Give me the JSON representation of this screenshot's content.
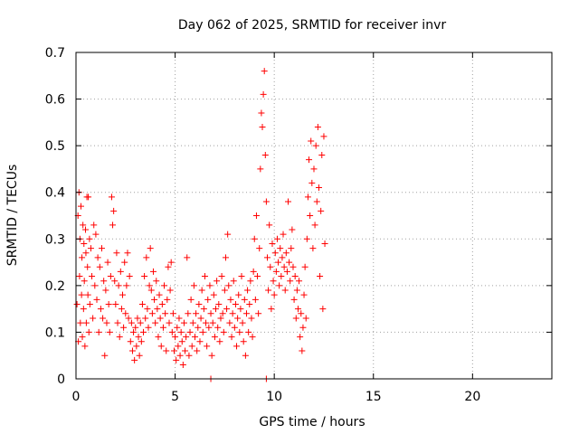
{
  "chart_data": {
    "type": "scatter",
    "title": "Day 062 of 2025, SRMTID for receiver invr",
    "xlabel": "GPS time / hours",
    "ylabel": "SRMTID / TECUs",
    "xlim": [
      0,
      24
    ],
    "ylim": [
      0,
      0.7
    ],
    "xticks": [
      0,
      5,
      10,
      15,
      20
    ],
    "yticks": [
      0,
      0.1,
      0.2,
      0.3,
      0.4,
      0.5,
      0.6,
      0.7
    ],
    "xtick_labels": [
      "0",
      "5",
      "10",
      "15",
      "20"
    ],
    "ytick_labels": [
      "0",
      "0.1",
      "0.2",
      "0.3",
      "0.4",
      "0.5",
      "0.6",
      "0.7"
    ],
    "grid": true,
    "marker": "+",
    "color": "#ff0000",
    "series": [
      {
        "name": "SRMTID",
        "points": [
          [
            0.05,
            0.16
          ],
          [
            0.1,
            0.35
          ],
          [
            0.12,
            0.08
          ],
          [
            0.15,
            0.4
          ],
          [
            0.18,
            0.22
          ],
          [
            0.2,
            0.3
          ],
          [
            0.22,
            0.12
          ],
          [
            0.25,
            0.37
          ],
          [
            0.28,
            0.18
          ],
          [
            0.3,
            0.26
          ],
          [
            0.32,
            0.09
          ],
          [
            0.35,
            0.33
          ],
          [
            0.38,
            0.15
          ],
          [
            0.4,
            0.29
          ],
          [
            0.42,
            0.21
          ],
          [
            0.45,
            0.07
          ],
          [
            0.48,
            0.32
          ],
          [
            0.5,
            0.27
          ],
          [
            0.52,
            0.12
          ],
          [
            0.55,
            0.39
          ],
          [
            0.58,
            0.24
          ],
          [
            0.6,
            0.18
          ],
          [
            0.62,
            0.39
          ],
          [
            0.65,
            0.1
          ],
          [
            0.68,
            0.3
          ],
          [
            0.7,
            0.16
          ],
          [
            0.75,
            0.28
          ],
          [
            0.8,
            0.22
          ],
          [
            0.85,
            0.13
          ],
          [
            0.9,
            0.33
          ],
          [
            0.95,
            0.2
          ],
          [
            1.0,
            0.31
          ],
          [
            1.05,
            0.17
          ],
          [
            1.1,
            0.26
          ],
          [
            1.15,
            0.1
          ],
          [
            1.2,
            0.24
          ],
          [
            1.25,
            0.15
          ],
          [
            1.3,
            0.28
          ],
          [
            1.35,
            0.13
          ],
          [
            1.4,
            0.21
          ],
          [
            1.45,
            0.05
          ],
          [
            1.5,
            0.19
          ],
          [
            1.55,
            0.12
          ],
          [
            1.6,
            0.25
          ],
          [
            1.65,
            0.16
          ],
          [
            1.7,
            0.1
          ],
          [
            1.75,
            0.22
          ],
          [
            1.8,
            0.39
          ],
          [
            1.85,
            0.33
          ],
          [
            1.9,
            0.36
          ],
          [
            1.95,
            0.21
          ],
          [
            2.0,
            0.16
          ],
          [
            2.05,
            0.27
          ],
          [
            2.1,
            0.12
          ],
          [
            2.15,
            0.2
          ],
          [
            2.2,
            0.09
          ],
          [
            2.25,
            0.23
          ],
          [
            2.3,
            0.15
          ],
          [
            2.35,
            0.18
          ],
          [
            2.4,
            0.11
          ],
          [
            2.45,
            0.25
          ],
          [
            2.5,
            0.14
          ],
          [
            2.55,
            0.2
          ],
          [
            2.6,
            0.27
          ],
          [
            2.65,
            0.13
          ],
          [
            2.7,
            0.22
          ],
          [
            2.75,
            0.08
          ],
          [
            2.8,
            0.12
          ],
          [
            2.85,
            0.06
          ],
          [
            2.9,
            0.1
          ],
          [
            2.95,
            0.04
          ],
          [
            3.0,
            0.11
          ],
          [
            3.05,
            0.07
          ],
          [
            3.1,
            0.13
          ],
          [
            3.15,
            0.09
          ],
          [
            3.2,
            0.05
          ],
          [
            3.25,
            0.12
          ],
          [
            3.3,
            0.08
          ],
          [
            3.35,
            0.16
          ],
          [
            3.4,
            0.1
          ],
          [
            3.45,
            0.22
          ],
          [
            3.5,
            0.13
          ],
          [
            3.55,
            0.26
          ],
          [
            3.6,
            0.15
          ],
          [
            3.65,
            0.11
          ],
          [
            3.7,
            0.2
          ],
          [
            3.75,
            0.28
          ],
          [
            3.8,
            0.19
          ],
          [
            3.85,
            0.14
          ],
          [
            3.9,
            0.23
          ],
          [
            3.95,
            0.17
          ],
          [
            4.0,
            0.12
          ],
          [
            4.05,
            0.21
          ],
          [
            4.1,
            0.15
          ],
          [
            4.15,
            0.09
          ],
          [
            4.2,
            0.18
          ],
          [
            4.25,
            0.13
          ],
          [
            4.3,
            0.07
          ],
          [
            4.35,
            0.16
          ],
          [
            4.4,
            0.11
          ],
          [
            4.45,
            0.2
          ],
          [
            4.5,
            0.14
          ],
          [
            4.55,
            0.06
          ],
          [
            4.6,
            0.17
          ],
          [
            4.65,
            0.24
          ],
          [
            4.7,
            0.12
          ],
          [
            4.75,
            0.19
          ],
          [
            4.8,
            0.25
          ],
          [
            4.85,
            0.1
          ],
          [
            4.9,
            0.14
          ],
          [
            4.95,
            0.06
          ],
          [
            5.0,
            0.09
          ],
          [
            5.05,
            0.04
          ],
          [
            5.1,
            0.11
          ],
          [
            5.15,
            0.07
          ],
          [
            5.2,
            0.13
          ],
          [
            5.25,
            0.05
          ],
          [
            5.3,
            0.1
          ],
          [
            5.35,
            0.08
          ],
          [
            5.4,
            0.03
          ],
          [
            5.45,
            0.12
          ],
          [
            5.5,
            0.06
          ],
          [
            5.55,
            0.09
          ],
          [
            5.6,
            0.26
          ],
          [
            5.65,
            0.14
          ],
          [
            5.7,
            0.05
          ],
          [
            5.75,
            0.1
          ],
          [
            5.8,
            0.17
          ],
          [
            5.85,
            0.07
          ],
          [
            5.9,
            0.12
          ],
          [
            5.95,
            0.2
          ],
          [
            6.0,
            0.09
          ],
          [
            6.05,
            0.14
          ],
          [
            6.1,
            0.06
          ],
          [
            6.15,
            0.11
          ],
          [
            6.2,
            0.16
          ],
          [
            6.25,
            0.08
          ],
          [
            6.3,
            0.13
          ],
          [
            6.35,
            0.19
          ],
          [
            6.4,
            0.1
          ],
          [
            6.45,
            0.15
          ],
          [
            6.5,
            0.22
          ],
          [
            6.55,
            0.12
          ],
          [
            6.6,
            0.07
          ],
          [
            6.65,
            0.17
          ],
          [
            6.7,
            0.11
          ],
          [
            6.75,
            0.2
          ],
          [
            6.8,
            0.14
          ],
          [
            6.85,
            0.05
          ],
          [
            6.9,
            0.12
          ],
          [
            6.95,
            0.18
          ],
          [
            7.0,
            0.09
          ],
          [
            7.05,
            0.15
          ],
          [
            7.1,
            0.21
          ],
          [
            7.15,
            0.11
          ],
          [
            7.2,
            0.16
          ],
          [
            7.25,
            0.08
          ],
          [
            7.3,
            0.13
          ],
          [
            7.35,
            0.22
          ],
          [
            7.4,
            0.14
          ],
          [
            7.45,
            0.1
          ],
          [
            7.5,
            0.19
          ],
          [
            7.55,
            0.26
          ],
          [
            7.6,
            0.15
          ],
          [
            7.65,
            0.31
          ],
          [
            7.7,
            0.2
          ],
          [
            7.75,
            0.12
          ],
          [
            7.8,
            0.17
          ],
          [
            7.85,
            0.09
          ],
          [
            7.9,
            0.14
          ],
          [
            7.95,
            0.21
          ],
          [
            8.0,
            0.11
          ],
          [
            8.05,
            0.16
          ],
          [
            8.1,
            0.07
          ],
          [
            8.15,
            0.13
          ],
          [
            8.2,
            0.18
          ],
          [
            8.25,
            0.1
          ],
          [
            8.3,
            0.15
          ],
          [
            8.35,
            0.22
          ],
          [
            8.4,
            0.12
          ],
          [
            8.45,
            0.08
          ],
          [
            8.5,
            0.17
          ],
          [
            8.55,
            0.05
          ],
          [
            8.6,
            0.14
          ],
          [
            8.65,
            0.19
          ],
          [
            8.7,
            0.1
          ],
          [
            8.75,
            0.16
          ],
          [
            8.8,
            0.21
          ],
          [
            8.85,
            0.13
          ],
          [
            8.9,
            0.09
          ],
          [
            8.95,
            0.23
          ],
          [
            9.0,
            0.3
          ],
          [
            9.05,
            0.17
          ],
          [
            9.1,
            0.35
          ],
          [
            9.15,
            0.22
          ],
          [
            9.2,
            0.14
          ],
          [
            9.25,
            0.28
          ],
          [
            9.3,
            0.45
          ],
          [
            9.35,
            0.57
          ],
          [
            9.4,
            0.54
          ],
          [
            9.45,
            0.61
          ],
          [
            9.5,
            0.66
          ],
          [
            9.55,
            0.48
          ],
          [
            9.6,
            0.38
          ],
          [
            9.65,
            0.26
          ],
          [
            9.7,
            0.19
          ],
          [
            9.75,
            0.33
          ],
          [
            9.8,
            0.24
          ],
          [
            9.85,
            0.15
          ],
          [
            9.9,
            0.29
          ],
          [
            9.95,
            0.21
          ],
          [
            10.0,
            0.18
          ],
          [
            10.05,
            0.27
          ],
          [
            10.1,
            0.23
          ],
          [
            10.15,
            0.3
          ],
          [
            10.2,
            0.25
          ],
          [
            10.25,
            0.2
          ],
          [
            10.3,
            0.28
          ],
          [
            10.35,
            0.22
          ],
          [
            10.4,
            0.26
          ],
          [
            10.45,
            0.31
          ],
          [
            10.5,
            0.24
          ],
          [
            10.55,
            0.19
          ],
          [
            10.6,
            0.27
          ],
          [
            10.65,
            0.23
          ],
          [
            10.7,
            0.38
          ],
          [
            10.75,
            0.25
          ],
          [
            10.8,
            0.21
          ],
          [
            10.85,
            0.28
          ],
          [
            10.9,
            0.32
          ],
          [
            10.95,
            0.24
          ],
          [
            11.0,
            0.17
          ],
          [
            11.05,
            0.22
          ],
          [
            11.1,
            0.13
          ],
          [
            11.15,
            0.19
          ],
          [
            11.2,
            0.15
          ],
          [
            11.25,
            0.21
          ],
          [
            11.3,
            0.09
          ],
          [
            11.35,
            0.14
          ],
          [
            11.4,
            0.06
          ],
          [
            11.45,
            0.11
          ],
          [
            11.5,
            0.18
          ],
          [
            11.55,
            0.24
          ],
          [
            11.6,
            0.13
          ],
          [
            11.65,
            0.3
          ],
          [
            11.7,
            0.39
          ],
          [
            11.75,
            0.47
          ],
          [
            11.8,
            0.35
          ],
          [
            11.85,
            0.51
          ],
          [
            11.9,
            0.42
          ],
          [
            11.95,
            0.28
          ],
          [
            12.0,
            0.45
          ],
          [
            12.05,
            0.33
          ],
          [
            12.1,
            0.5
          ],
          [
            12.15,
            0.38
          ],
          [
            12.2,
            0.54
          ],
          [
            12.25,
            0.41
          ],
          [
            12.3,
            0.22
          ],
          [
            12.35,
            0.36
          ],
          [
            12.4,
            0.48
          ],
          [
            12.45,
            0.15
          ],
          [
            12.5,
            0.52
          ],
          [
            12.55,
            0.29
          ],
          [
            6.8,
            0.0
          ],
          [
            9.6,
            0.0
          ]
        ]
      }
    ]
  }
}
